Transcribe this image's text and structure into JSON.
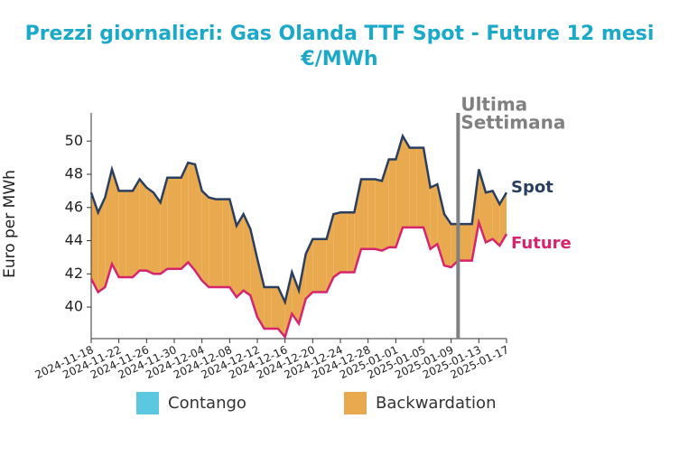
{
  "chart_data": {
    "type": "line",
    "title": "Prezzi giornalieri: Gas Olanda TTF Spot - Future 12 mesi",
    "subtitle": "€/MWh",
    "y_label": "Euro per MWh",
    "x": [
      "2024-11-18",
      "2024-11-19",
      "2024-11-20",
      "2024-11-21",
      "2024-11-22",
      "2024-11-23",
      "2024-11-24",
      "2024-11-25",
      "2024-11-26",
      "2024-11-27",
      "2024-11-28",
      "2024-11-29",
      "2024-11-30",
      "2024-12-01",
      "2024-12-02",
      "2024-12-03",
      "2024-12-04",
      "2024-12-05",
      "2024-12-06",
      "2024-12-07",
      "2024-12-08",
      "2024-12-09",
      "2024-12-10",
      "2024-12-11",
      "2024-12-12",
      "2024-12-13",
      "2024-12-14",
      "2024-12-15",
      "2024-12-16",
      "2024-12-17",
      "2024-12-18",
      "2024-12-19",
      "2024-12-20",
      "2024-12-21",
      "2024-12-22",
      "2024-12-23",
      "2024-12-24",
      "2024-12-25",
      "2024-12-26",
      "2024-12-27",
      "2024-12-28",
      "2024-12-29",
      "2024-12-30",
      "2024-12-31",
      "2025-01-01",
      "2025-01-02",
      "2025-01-03",
      "2025-01-04",
      "2025-01-05",
      "2025-01-06",
      "2025-01-07",
      "2025-01-08",
      "2025-01-09",
      "2025-01-10",
      "2025-01-11",
      "2025-01-12",
      "2025-01-13",
      "2025-01-14",
      "2025-01-15",
      "2025-01-16",
      "2025-01-17"
    ],
    "series": [
      {
        "name": "Spot",
        "color": "#2a3f5f",
        "values": [
          46.9,
          45.7,
          46.6,
          48.3,
          47.0,
          47.0,
          47.0,
          47.7,
          47.2,
          46.9,
          46.3,
          47.8,
          47.8,
          47.8,
          48.7,
          48.6,
          47.0,
          46.6,
          46.5,
          46.5,
          46.5,
          44.9,
          45.6,
          44.7,
          42.9,
          41.2,
          41.2,
          41.2,
          40.3,
          42.1,
          41.0,
          43.2,
          44.1,
          44.1,
          44.1,
          45.6,
          45.7,
          45.7,
          45.7,
          47.7,
          47.7,
          47.7,
          47.6,
          48.9,
          48.9,
          50.3,
          49.6,
          49.6,
          49.6,
          47.2,
          47.4,
          45.6,
          45.0,
          45.0,
          45.0,
          45.0,
          48.3,
          46.9,
          47.0,
          46.2,
          46.9
        ]
      },
      {
        "name": "Future",
        "color": "#d6246e",
        "values": [
          41.7,
          40.9,
          41.2,
          42.6,
          41.8,
          41.8,
          41.8,
          42.2,
          42.2,
          42.0,
          42.0,
          42.3,
          42.3,
          42.3,
          42.7,
          42.2,
          41.6,
          41.2,
          41.2,
          41.2,
          41.2,
          40.6,
          41.0,
          40.7,
          39.4,
          38.7,
          38.7,
          38.7,
          38.2,
          39.6,
          39.0,
          40.5,
          40.9,
          40.9,
          40.9,
          41.8,
          42.1,
          42.1,
          42.1,
          43.5,
          43.5,
          43.5,
          43.4,
          43.6,
          43.6,
          44.8,
          44.8,
          44.8,
          44.8,
          43.5,
          43.8,
          42.5,
          42.4,
          42.8,
          42.8,
          42.8,
          45.1,
          43.9,
          44.1,
          43.7,
          44.4
        ]
      }
    ],
    "fill_legend": [
      {
        "name": "Contango",
        "color": "#5bc8e0"
      },
      {
        "name": "Backwardation",
        "color": "#e9aa4f"
      }
    ],
    "annotation": {
      "lines": [
        "Ultima",
        "Settimana"
      ],
      "x": "2025-01-10",
      "color": "#808080"
    },
    "xticks": [
      "2024-11-18",
      "2024-11-22",
      "2024-11-26",
      "2024-11-30",
      "2024-12-04",
      "2024-12-08",
      "2024-12-12",
      "2024-12-16",
      "2024-12-20",
      "2024-12-24",
      "2024-12-28",
      "2025-01-01",
      "2025-01-05",
      "2025-01-09",
      "2025-01-13",
      "2025-01-17"
    ],
    "ylim": [
      38.1,
      51.7
    ],
    "yticks": [
      40,
      42,
      44,
      46,
      48,
      50
    ]
  }
}
